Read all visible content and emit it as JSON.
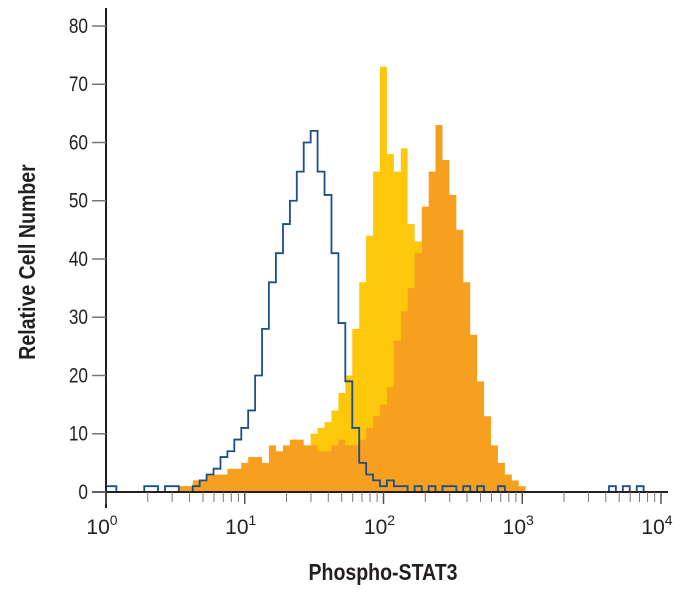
{
  "chart_data": {
    "type": "histogram",
    "title": "",
    "xlabel": "Phospho-STAT3",
    "ylabel": "Relative Cell Number",
    "x_scale": "log",
    "xlim": [
      1,
      10000
    ],
    "ylim": [
      0,
      80
    ],
    "grid": false,
    "legend": "none",
    "y_ticks": [
      "0",
      "10",
      "20",
      "30",
      "40",
      "50",
      "60",
      "70",
      "80"
    ],
    "x_ticks": [
      {
        "value": 1,
        "base": "10",
        "exp": "0"
      },
      {
        "value": 10,
        "base": "10",
        "exp": "1"
      },
      {
        "value": 100,
        "base": "10",
        "exp": "2"
      },
      {
        "value": 1000,
        "base": "10",
        "exp": "3"
      },
      {
        "value": 10000,
        "base": "10",
        "exp": "4"
      }
    ],
    "x": [
      1,
      1.12,
      1.26,
      1.41,
      1.58,
      1.78,
      2,
      2.24,
      2.51,
      2.82,
      3.16,
      3.55,
      3.98,
      4.47,
      5.01,
      5.62,
      6.31,
      7.08,
      7.94,
      8.91,
      10,
      11.2,
      12.6,
      14.1,
      15.8,
      17.8,
      20,
      22.4,
      25.1,
      28.2,
      31.6,
      35.5,
      39.8,
      44.7,
      50.1,
      56.2,
      63.1,
      70.8,
      79.4,
      89.1,
      100,
      112,
      126,
      141,
      158,
      178,
      200,
      224,
      251,
      282,
      316,
      355,
      398,
      447,
      501,
      562,
      631,
      708,
      794,
      891,
      1000,
      1120,
      1260,
      1410,
      1580,
      1780,
      2000,
      2240,
      2510,
      2820,
      3160,
      3550,
      3980,
      4470,
      5010,
      5620,
      6310,
      7080,
      7940,
      8910,
      10000
    ],
    "series": [
      {
        "style": "filled",
        "color": "#fdc70c",
        "values": [
          0,
          0,
          0,
          0,
          0,
          0,
          0,
          0,
          0,
          0,
          0,
          0,
          0,
          0,
          0,
          0,
          0,
          0,
          0,
          0,
          0,
          0,
          0,
          0,
          0,
          0,
          2,
          4,
          6,
          8,
          10,
          11,
          12,
          14,
          17,
          20,
          28,
          36,
          44,
          55,
          73,
          58,
          55,
          59,
          46,
          43,
          38,
          30,
          22,
          15,
          10,
          6,
          3,
          0,
          0,
          0,
          0,
          0,
          0,
          0,
          0,
          0,
          0,
          0,
          0,
          0,
          0,
          0,
          0,
          0,
          0,
          0,
          0,
          0,
          0,
          0,
          0,
          0,
          0,
          0,
          0
        ]
      },
      {
        "style": "filled",
        "color": "#f7a020",
        "values": [
          0,
          0,
          0,
          0,
          0,
          0,
          0,
          0,
          0,
          0,
          0,
          1,
          1,
          2,
          2,
          3,
          3,
          3,
          4,
          4,
          5,
          6,
          6,
          5,
          8,
          7,
          8,
          9,
          9,
          8,
          8,
          7,
          7,
          8,
          9,
          8,
          8,
          9,
          11,
          13,
          15,
          18,
          26,
          31,
          35,
          41,
          49,
          55,
          63,
          57,
          51,
          45,
          36,
          27,
          19,
          13,
          8,
          5,
          3,
          2,
          1,
          0,
          0,
          0,
          0,
          0,
          0,
          0,
          0,
          0,
          0,
          0,
          0,
          0,
          0,
          0,
          0,
          0,
          0,
          0,
          0
        ]
      },
      {
        "style": "outline",
        "color": "#1a4f8a",
        "values": [
          1,
          1,
          0,
          0,
          0,
          0,
          1,
          1,
          0,
          1,
          1,
          0,
          0,
          1,
          2,
          3,
          4,
          6,
          7,
          9,
          11,
          14,
          20,
          28,
          36,
          41,
          46,
          50,
          55,
          60,
          62,
          55,
          51,
          41,
          29,
          19,
          11,
          5,
          3,
          2,
          1,
          2,
          1,
          1,
          0,
          1,
          0,
          1,
          0,
          1,
          1,
          0,
          1,
          0,
          1,
          0,
          0,
          1,
          0,
          0,
          0,
          0,
          0,
          0,
          0,
          0,
          0,
          0,
          0,
          0,
          0,
          0,
          0,
          1,
          0,
          1,
          0,
          1,
          0,
          0,
          0
        ]
      }
    ]
  }
}
